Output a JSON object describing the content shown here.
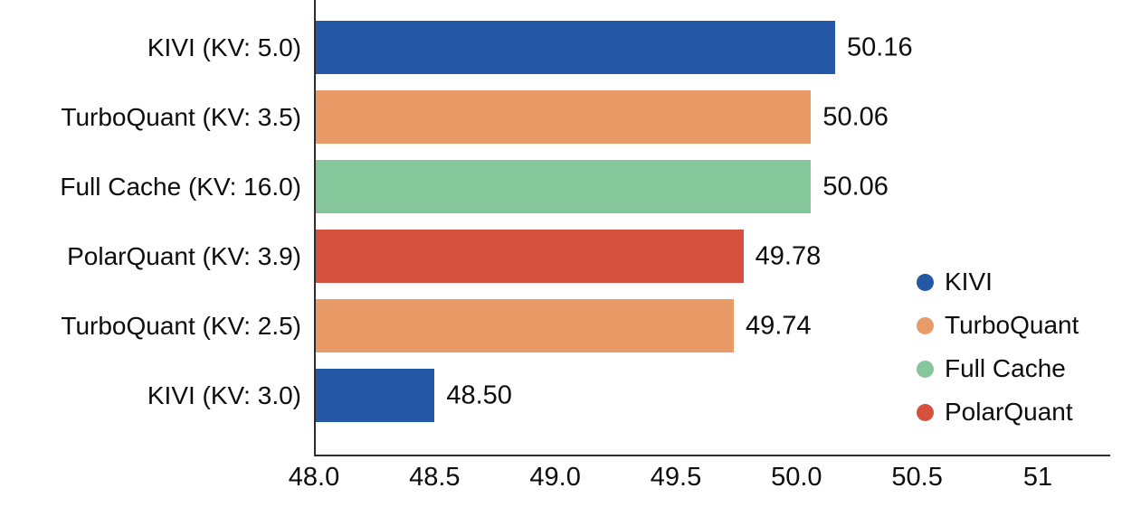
{
  "chart_data": {
    "type": "bar",
    "orientation": "horizontal",
    "title": "",
    "xlabel": "",
    "ylabel": "",
    "grid": false,
    "categories": [
      "KIVI (KV: 5.0)",
      "TurboQuant (KV: 3.5)",
      "Full Cache (KV: 16.0)",
      "PolarQuant (KV: 3.9)",
      "TurboQuant (KV: 2.5)",
      "KIVI (KV: 3.0)"
    ],
    "values": [
      50.16,
      50.06,
      50.06,
      49.78,
      49.74,
      48.5
    ],
    "value_labels": [
      "50.16",
      "50.06",
      "50.06",
      "49.78",
      "49.74",
      "48.50"
    ],
    "series_of_bar": [
      "KIVI",
      "TurboQuant",
      "Full Cache",
      "PolarQuant",
      "TurboQuant",
      "KIVI"
    ],
    "colors": {
      "KIVI": "#2458a6",
      "TurboQuant": "#e89b66",
      "Full Cache": "#85c69b",
      "PolarQuant": "#d6503e"
    },
    "axis_color": "#2d2d2d",
    "text_color": "#0d0d0d",
    "xlim": [
      48.0,
      51.3
    ],
    "x_ticks": [
      48.0,
      48.5,
      49.0,
      49.5,
      50.0,
      50.5,
      51
    ],
    "x_tick_labels": [
      "48.0",
      "48.5",
      "49.0",
      "49.5",
      "50.0",
      "50.5",
      "51"
    ],
    "legend": {
      "position": "center-right",
      "entries": [
        "KIVI",
        "TurboQuant",
        "Full Cache",
        "PolarQuant"
      ]
    }
  }
}
